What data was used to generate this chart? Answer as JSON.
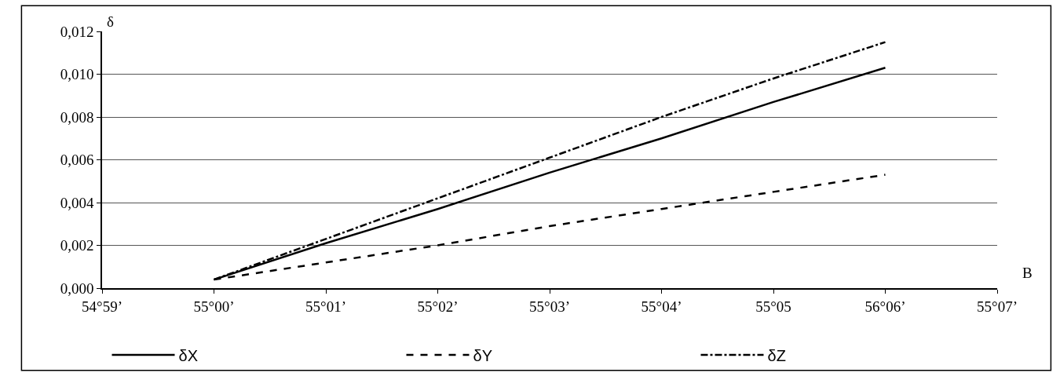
{
  "chart_data": {
    "type": "line",
    "xlabel": "B",
    "ylabel": "δ",
    "categories": [
      "54°59’",
      "55°00’",
      "55°01’",
      "55°02’",
      "55°03’",
      "55°04’",
      "55°05",
      "56°06’",
      "55°07’"
    ],
    "series": [
      {
        "name": "δX",
        "color": "#000000",
        "line_style": "solid",
        "values": [
          null,
          0.0004,
          0.0021,
          0.0037,
          0.0054,
          0.007,
          0.0087,
          0.0103,
          null
        ]
      },
      {
        "name": "δY",
        "color": "#000000",
        "line_style": "dashed",
        "values": [
          null,
          0.0004,
          0.0012,
          0.002,
          0.0029,
          0.0037,
          0.0045,
          0.0053,
          null
        ]
      },
      {
        "name": "δZ",
        "color": "#000000",
        "line_style": "dashdot",
        "values": [
          null,
          0.0004,
          0.0023,
          0.0042,
          0.0061,
          0.008,
          0.0098,
          0.0115,
          null
        ]
      }
    ],
    "ylim": [
      0,
      0.012
    ],
    "yticks": [
      {
        "value": 0,
        "label": "0,000"
      },
      {
        "value": 0.002,
        "label": "0,002"
      },
      {
        "value": 0.004,
        "label": "0,004"
      },
      {
        "value": 0.006,
        "label": "0,006"
      },
      {
        "value": 0.008,
        "label": "0,008"
      },
      {
        "value": 0.01,
        "label": "0,010"
      },
      {
        "value": 0.012,
        "label": "0,012"
      }
    ],
    "grid": "y",
    "legend": "bottom",
    "marker": "none"
  }
}
